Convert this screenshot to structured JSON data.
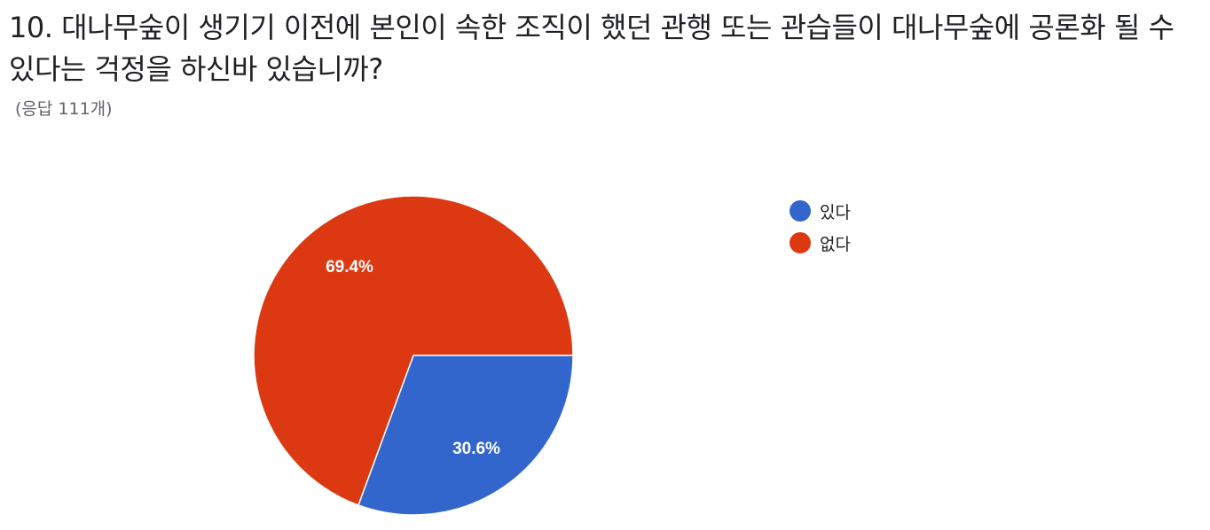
{
  "question": {
    "title": "10. 대나무숲이 생기기 이전에 본인이 속한 조직이 했던 관행 또는 관습들이 대나무숲에 공론화 될 수 있다는 걱정을 하신바 있습니까?",
    "response_count": "(응답 111개)"
  },
  "chart_data": {
    "type": "pie",
    "title": "10. 대나무숲이 생기기 이전에 본인이 속한 조직이 했던 관행 또는 관습들이 대나무숲에 공론화 될 수 있다는 걱정을 하신바 있습니까?",
    "legend_position": "right",
    "slices": [
      {
        "label": "있다",
        "value": 30.6,
        "display": "30.6%",
        "color": "#3366cc"
      },
      {
        "label": "없다",
        "value": 69.4,
        "display": "69.4%",
        "color": "#dc3912"
      }
    ]
  }
}
